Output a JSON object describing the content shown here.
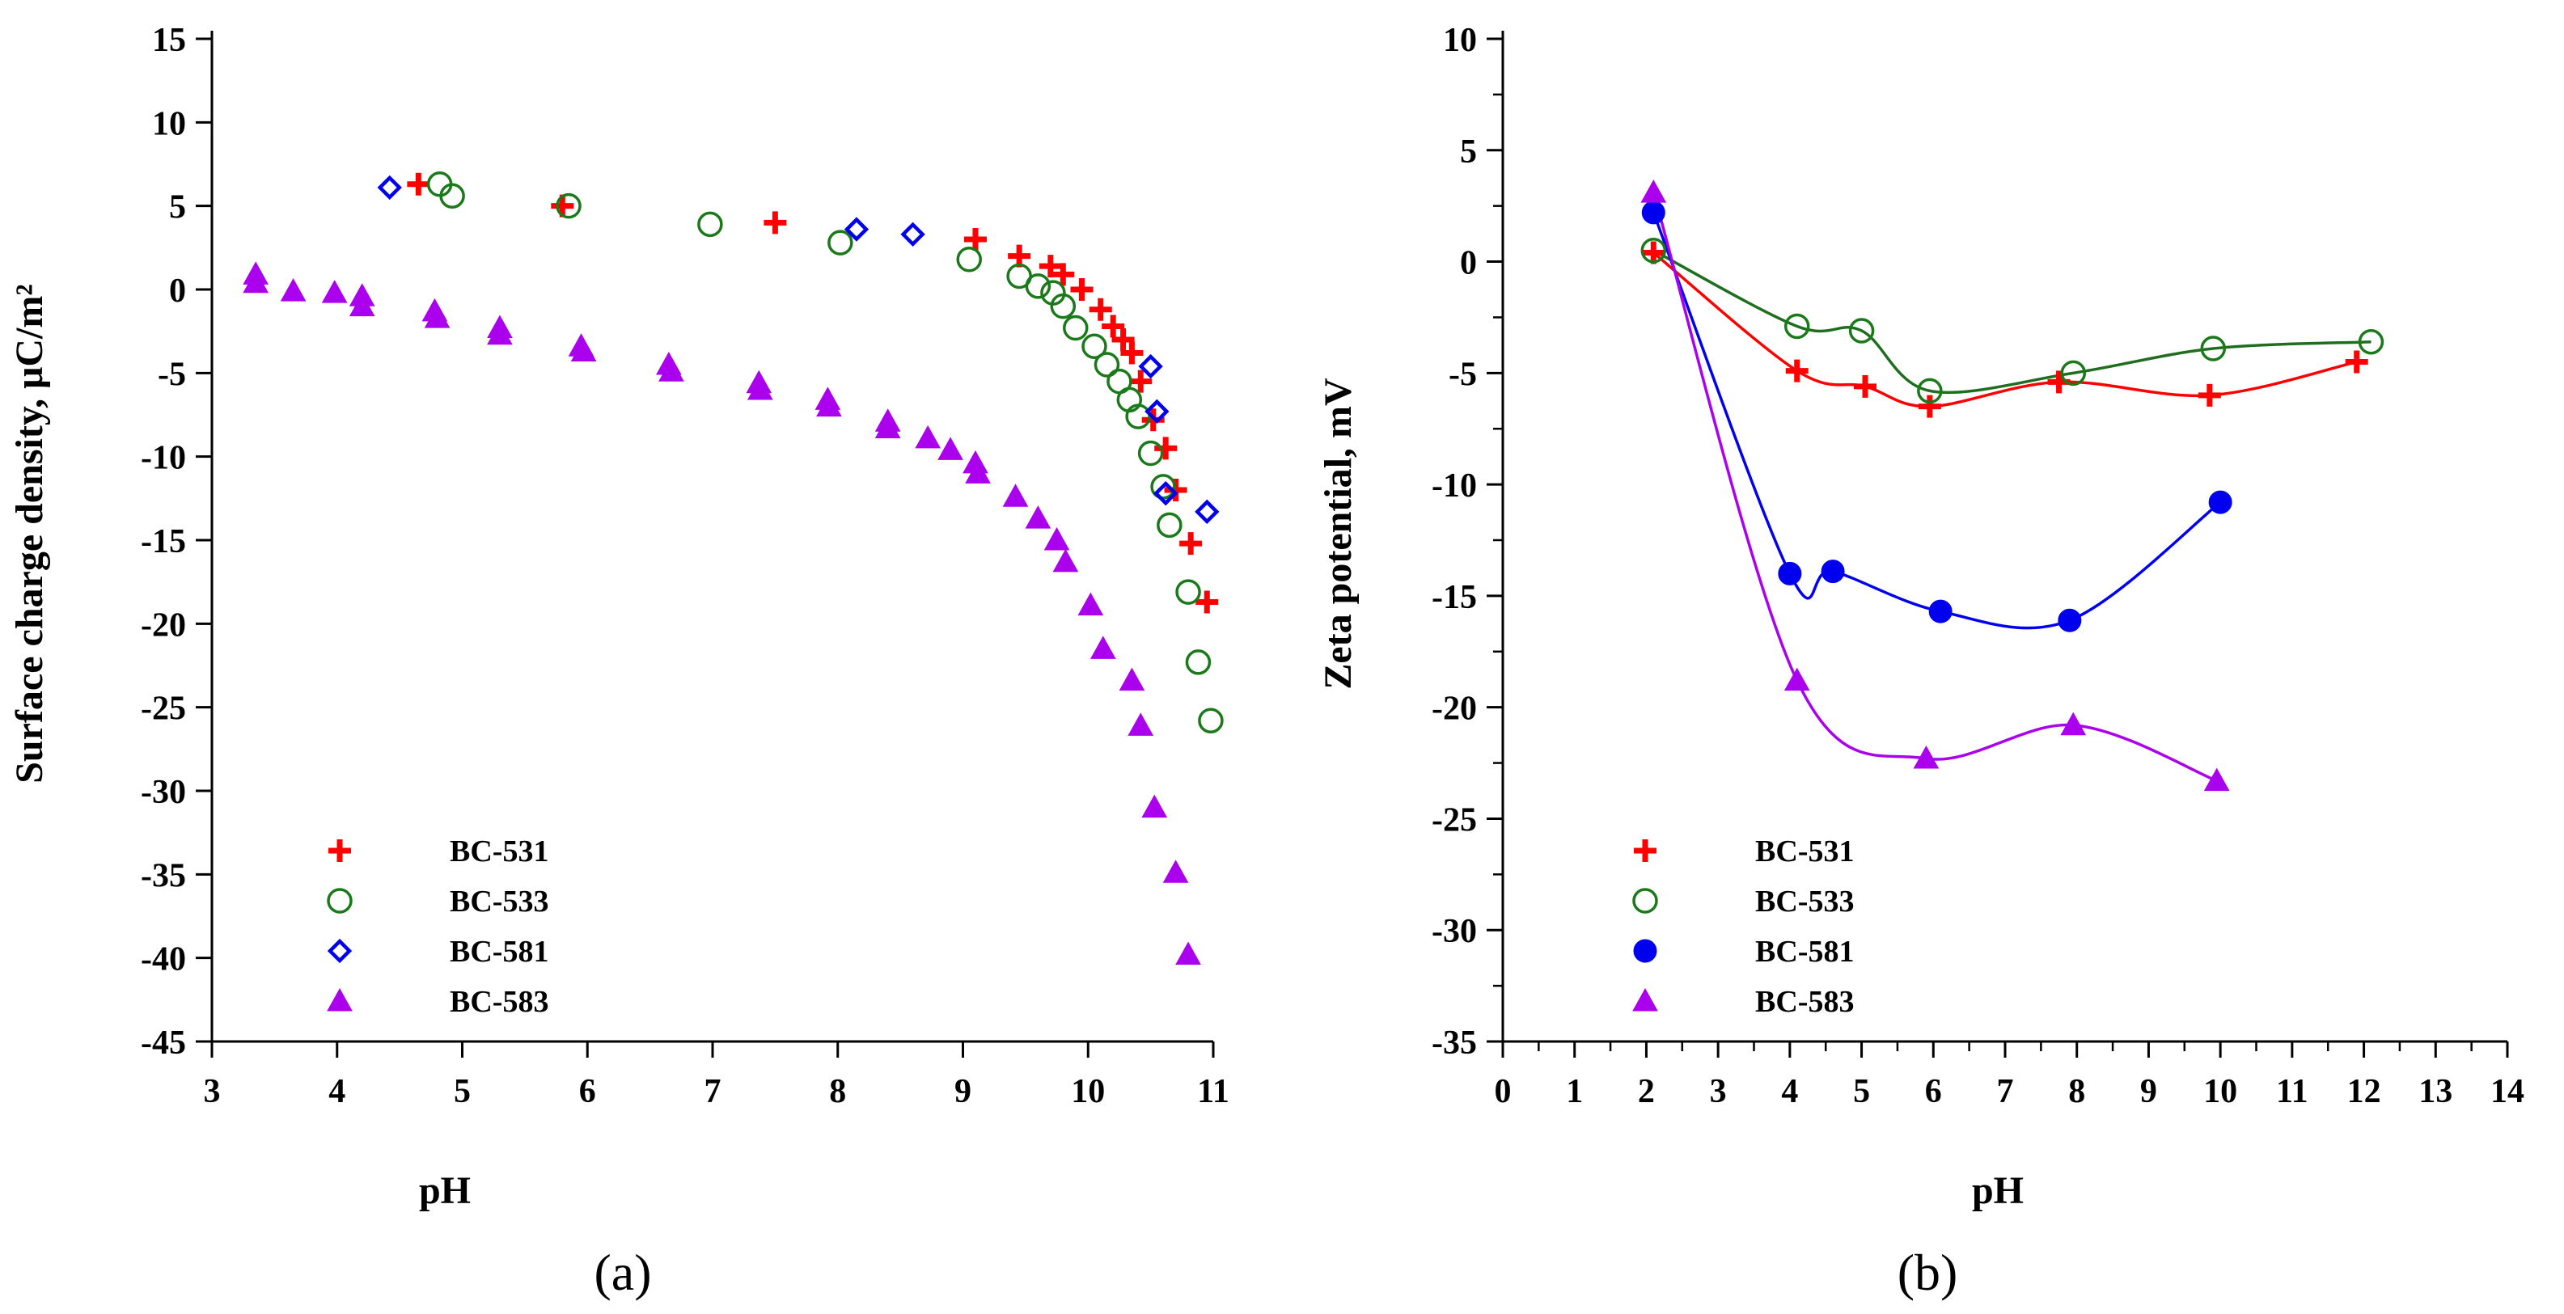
{
  "colors": {
    "BC-531": "#ff0000",
    "BC-533": "#1a7a1a",
    "BC-581": "#0000ee",
    "BC-583": "#aa00ee",
    "axis": "#000000"
  },
  "chart_data": [
    {
      "panel": "(a)",
      "type": "scatter",
      "title": "",
      "xlabel": "pH",
      "ylabel": "Surface charge density, μC/m²",
      "xlim": [
        3,
        11
      ],
      "ylim": [
        -45,
        15
      ],
      "xticks": [
        "3",
        "4",
        "5",
        "6",
        "7",
        "8",
        "9",
        "10",
        "11"
      ],
      "yticks": [
        "15",
        "10",
        "5",
        "0",
        "-5",
        "-10",
        "-15",
        "-20",
        "-25",
        "-30",
        "-35",
        "-40",
        "-45"
      ],
      "legend_position": "bottom-left",
      "series": [
        {
          "name": "BC-531",
          "marker": "plus",
          "points": [
            [
              4.65,
              6.3
            ],
            [
              5.8,
              5.0
            ],
            [
              7.5,
              4.0
            ],
            [
              9.1,
              3.0
            ],
            [
              9.45,
              2.0
            ],
            [
              9.7,
              1.4
            ],
            [
              9.8,
              0.9
            ],
            [
              9.95,
              0.0
            ],
            [
              10.1,
              -1.2
            ],
            [
              10.2,
              -2.2
            ],
            [
              10.28,
              -3.0
            ],
            [
              10.35,
              -3.8
            ],
            [
              10.42,
              -5.5
            ],
            [
              10.52,
              -7.8
            ],
            [
              10.62,
              -9.5
            ],
            [
              10.7,
              -12.0
            ],
            [
              10.82,
              -15.2
            ],
            [
              10.95,
              -18.7
            ]
          ]
        },
        {
          "name": "BC-533",
          "marker": "open-circle",
          "points": [
            [
              4.82,
              6.3
            ],
            [
              4.92,
              5.6
            ],
            [
              5.85,
              5.0
            ],
            [
              6.98,
              3.9
            ],
            [
              8.02,
              2.8
            ],
            [
              9.05,
              1.8
            ],
            [
              9.45,
              0.8
            ],
            [
              9.6,
              0.2
            ],
            [
              9.72,
              -0.2
            ],
            [
              9.8,
              -1.0
            ],
            [
              9.9,
              -2.3
            ],
            [
              10.05,
              -3.4
            ],
            [
              10.15,
              -4.5
            ],
            [
              10.25,
              -5.5
            ],
            [
              10.33,
              -6.6
            ],
            [
              10.4,
              -7.6
            ],
            [
              10.5,
              -9.8
            ],
            [
              10.6,
              -11.8
            ],
            [
              10.65,
              -14.1
            ],
            [
              10.8,
              -18.1
            ],
            [
              10.88,
              -22.3
            ],
            [
              10.98,
              -25.8
            ]
          ]
        },
        {
          "name": "BC-581",
          "marker": "open-diamond",
          "points": [
            [
              4.42,
              6.1
            ],
            [
              8.15,
              3.6
            ],
            [
              8.6,
              3.3
            ],
            [
              10.5,
              -4.6
            ],
            [
              10.55,
              -7.3
            ],
            [
              10.62,
              -12.2
            ],
            [
              10.95,
              -13.3
            ]
          ]
        },
        {
          "name": "BC-583",
          "marker": "filled-triangle",
          "points": [
            [
              3.35,
              0.9
            ],
            [
              3.35,
              0.4
            ],
            [
              3.65,
              -0.1
            ],
            [
              3.98,
              -0.2
            ],
            [
              4.2,
              -0.4
            ],
            [
              4.2,
              -1.0
            ],
            [
              4.78,
              -1.3
            ],
            [
              4.8,
              -1.7
            ],
            [
              5.3,
              -2.3
            ],
            [
              5.3,
              -2.7
            ],
            [
              5.95,
              -3.4
            ],
            [
              5.97,
              -3.7
            ],
            [
              6.65,
              -4.5
            ],
            [
              6.67,
              -4.9
            ],
            [
              7.37,
              -5.6
            ],
            [
              7.38,
              -6.0
            ],
            [
              7.92,
              -6.6
            ],
            [
              7.93,
              -7.0
            ],
            [
              8.4,
              -7.9
            ],
            [
              8.4,
              -8.3
            ],
            [
              8.72,
              -8.9
            ],
            [
              8.9,
              -9.6
            ],
            [
              9.1,
              -10.4
            ],
            [
              9.12,
              -11.0
            ],
            [
              9.42,
              -12.4
            ],
            [
              9.6,
              -13.7
            ],
            [
              9.75,
              -15.0
            ],
            [
              9.82,
              -16.3
            ],
            [
              10.02,
              -18.9
            ],
            [
              10.12,
              -21.5
            ],
            [
              10.35,
              -23.4
            ],
            [
              10.42,
              -26.1
            ],
            [
              10.53,
              -31.0
            ],
            [
              10.7,
              -34.9
            ],
            [
              10.8,
              -39.8
            ]
          ]
        }
      ]
    },
    {
      "panel": "(b)",
      "type": "line",
      "title": "",
      "xlabel": "pH",
      "ylabel": "Zeta potential,  mV",
      "xlim": [
        0,
        14
      ],
      "ylim": [
        -35,
        10
      ],
      "xticks": [
        "0",
        "1",
        "2",
        "3",
        "4",
        "5",
        "6",
        "7",
        "8",
        "9",
        "10",
        "11",
        "12",
        "13",
        "14"
      ],
      "yticks": [
        "10",
        "5",
        "0",
        "-5",
        "-10",
        "-15",
        "-20",
        "-25",
        "-30",
        "-35"
      ],
      "legend_position": "bottom-left",
      "series": [
        {
          "name": "BC-531",
          "marker": "plus",
          "smooth": true,
          "points": [
            [
              2.1,
              0.4
            ],
            [
              4.1,
              -4.9
            ],
            [
              5.05,
              -5.6
            ],
            [
              5.95,
              -6.5
            ],
            [
              7.75,
              -5.4
            ],
            [
              9.85,
              -6.0
            ],
            [
              11.9,
              -4.5
            ]
          ]
        },
        {
          "name": "BC-533",
          "marker": "open-circle",
          "smooth": true,
          "points": [
            [
              2.1,
              0.5
            ],
            [
              4.1,
              -2.9
            ],
            [
              5.0,
              -3.1
            ],
            [
              5.95,
              -5.8
            ],
            [
              7.95,
              -5.0
            ],
            [
              9.9,
              -3.9
            ],
            [
              12.1,
              -3.6
            ]
          ]
        },
        {
          "name": "BC-581",
          "marker": "filled-circle",
          "smooth": true,
          "points": [
            [
              2.1,
              2.2
            ],
            [
              4.0,
              -14.0
            ],
            [
              4.6,
              -13.9
            ],
            [
              6.1,
              -15.7
            ],
            [
              7.9,
              -16.1
            ],
            [
              10.0,
              -10.8
            ]
          ]
        },
        {
          "name": "BC-583",
          "marker": "filled-triangle",
          "smooth": true,
          "points": [
            [
              2.1,
              3.1
            ],
            [
              4.1,
              -18.8
            ],
            [
              5.9,
              -22.3
            ],
            [
              7.95,
              -20.8
            ],
            [
              9.95,
              -23.3
            ]
          ]
        }
      ]
    }
  ]
}
